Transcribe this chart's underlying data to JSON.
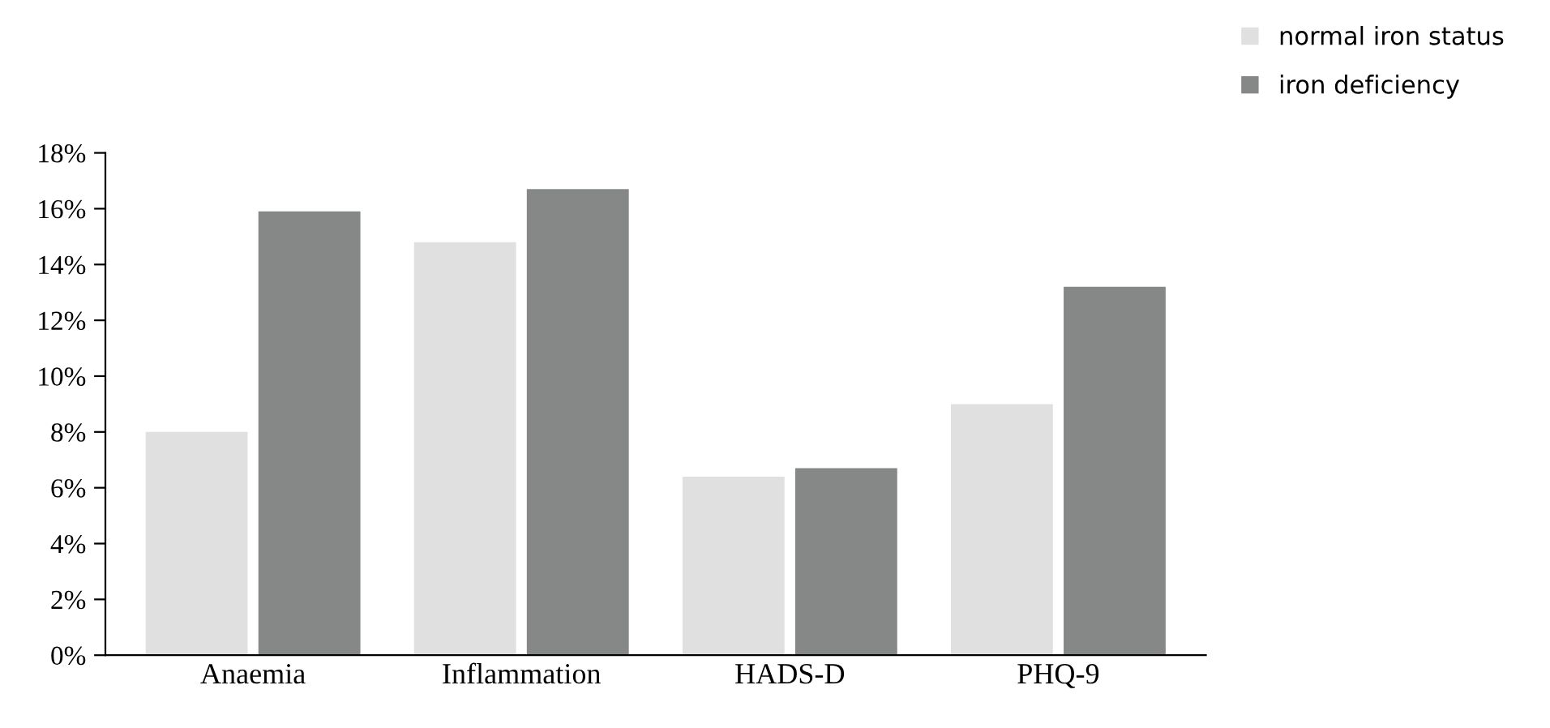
{
  "chart_data": {
    "type": "bar",
    "categories": [
      "Anaemia",
      "Inflammation",
      "HADS-D",
      "PHQ-9"
    ],
    "series": [
      {
        "name": "normal iron status",
        "color": "#e0e0e0",
        "values": [
          8.0,
          14.8,
          6.4,
          9.0
        ]
      },
      {
        "name": "iron deficiency",
        "color": "#868888",
        "values": [
          15.9,
          16.7,
          6.7,
          13.2
        ]
      }
    ],
    "ylim": [
      0,
      18
    ],
    "yticks": [
      {
        "value": 0,
        "label": "0%"
      },
      {
        "value": 2,
        "label": "2%"
      },
      {
        "value": 4,
        "label": "4%"
      },
      {
        "value": 6,
        "label": "6%"
      },
      {
        "value": 8,
        "label": "8%"
      },
      {
        "value": 10,
        "label": "10%"
      },
      {
        "value": 12,
        "label": "12%"
      },
      {
        "value": 14,
        "label": "14%"
      },
      {
        "value": 16,
        "label": "16%"
      },
      {
        "value": 18,
        "label": "18%"
      }
    ],
    "grid": false,
    "legend": "top right"
  }
}
